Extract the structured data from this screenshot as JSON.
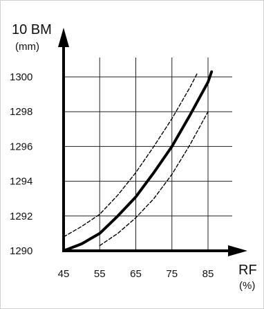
{
  "chart_data": {
    "type": "line",
    "ylabel": "10 BM",
    "yunit": "(mm)",
    "xlabel": "RF",
    "xunit": "(%)",
    "xlim": [
      45,
      85
    ],
    "ylim": [
      1290,
      1300
    ],
    "xticks": [
      45,
      55,
      65,
      75,
      85
    ],
    "yticks": [
      1290,
      1292,
      1294,
      1296,
      1298,
      1300
    ],
    "grid": true,
    "series": [
      {
        "style": "solid",
        "x": [
          45,
          50,
          55,
          60,
          65,
          70,
          75,
          80,
          85,
          86
        ],
        "y": [
          1290.0,
          1290.4,
          1291.0,
          1292.0,
          1293.1,
          1294.5,
          1296.0,
          1297.8,
          1299.7,
          1300.3
        ]
      },
      {
        "style": "dashed",
        "x": [
          45,
          50,
          55,
          60,
          65,
          70,
          75,
          80,
          82
        ],
        "y": [
          1290.8,
          1291.4,
          1292.1,
          1293.2,
          1294.5,
          1296.0,
          1297.6,
          1299.4,
          1300.2
        ]
      },
      {
        "style": "dashed",
        "x": [
          55,
          60,
          65,
          70,
          75,
          80,
          85
        ],
        "y": [
          1290.3,
          1291.0,
          1291.9,
          1293.0,
          1294.4,
          1296.1,
          1298.0
        ]
      }
    ]
  }
}
